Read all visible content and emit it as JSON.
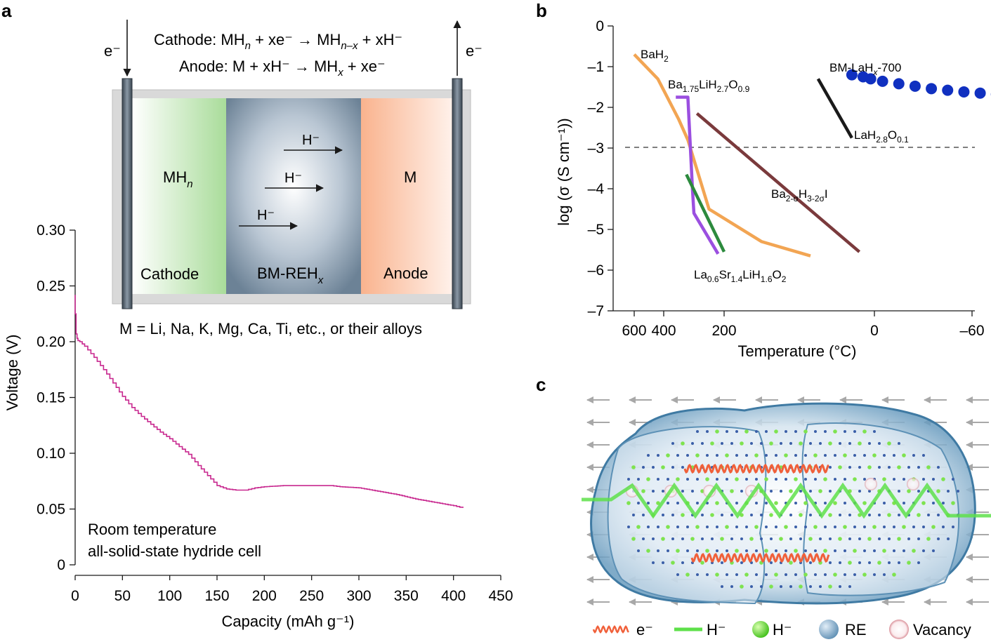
{
  "panel_labels": {
    "a": "a",
    "b": "b",
    "c": "c"
  },
  "cell_diagram": {
    "electron_in": "e⁻",
    "electron_out": "e⁻",
    "cathode_eq": {
      "pre": "Cathode: MH",
      "n": "n",
      "mid": " + xe⁻ → MH",
      "nx": "n–x",
      "post": " + xH⁻"
    },
    "anode_eq": {
      "pre": "Anode: M + xH⁻ → MH",
      "x": "x",
      "post": " + xe⁻"
    },
    "cathode_region": {
      "main": "MH",
      "sub": "n",
      "label": "Cathode"
    },
    "electrolyte_region": {
      "label_main": "BM-REH",
      "label_sub": "x",
      "ion_labels": [
        "H⁻",
        "H⁻",
        "H⁻"
      ]
    },
    "anode_region": {
      "main": "M",
      "label": "Anode"
    },
    "metals_note": "M = Li, Na, K, Mg, Ca, Ti, etc., or their alloys"
  },
  "chart_a": {
    "chart_data": {
      "type": "line",
      "xlabel": "Capacity (mAh g⁻¹)",
      "ylabel": "Voltage (V)",
      "xlim": [
        0,
        450
      ],
      "ylim": [
        0,
        0.3
      ],
      "xticks": [
        "0",
        "50",
        "100",
        "150",
        "200",
        "250",
        "300",
        "350",
        "400",
        "450"
      ],
      "yticks": [
        "0",
        "0.05",
        "0.10",
        "0.15",
        "0.20",
        "0.25",
        "0.30"
      ],
      "annotation": [
        "Room temperature",
        "all-solid-state hydride cell"
      ],
      "series": [
        {
          "color": "#c8288f",
          "x": [
            0,
            0,
            1,
            2,
            3,
            5,
            10,
            20,
            30,
            40,
            50,
            60,
            70,
            80,
            90,
            100,
            110,
            120,
            130,
            140,
            150,
            160,
            170,
            180,
            190,
            200,
            220,
            240,
            260,
            270,
            280,
            300,
            320,
            340,
            360,
            380,
            400,
            410
          ],
          "y": [
            0.242,
            0.225,
            0.207,
            0.203,
            0.201,
            0.2,
            0.196,
            0.186,
            0.175,
            0.163,
            0.151,
            0.141,
            0.133,
            0.126,
            0.119,
            0.113,
            0.106,
            0.099,
            0.089,
            0.08,
            0.071,
            0.068,
            0.067,
            0.067,
            0.069,
            0.07,
            0.071,
            0.071,
            0.071,
            0.071,
            0.07,
            0.069,
            0.066,
            0.063,
            0.059,
            0.056,
            0.053,
            0.051
          ]
        }
      ]
    }
  },
  "chart_b": {
    "chart_data": {
      "type": "line",
      "xlabel": "Temperature (°C)",
      "ylabel": "log (σ (S cm⁻¹))",
      "xticks": [
        "600",
        "400",
        "200",
        "0",
        "–60"
      ],
      "xtick_values": [
        600,
        400,
        200,
        0,
        -60
      ],
      "yticks": [
        "0",
        "–1",
        "–2",
        "–3",
        "–4",
        "–5",
        "–6",
        "–7"
      ],
      "ylim": [
        -7,
        0
      ],
      "reference_line": -3,
      "series": [
        {
          "name": "BaH2",
          "color": "#f2a553",
          "x": [
            600,
            440,
            350,
            320,
            250,
            150,
            85
          ],
          "y": [
            -0.7,
            -1.3,
            -2.3,
            -2.8,
            -4.5,
            -5.3,
            -5.65
          ]
        },
        {
          "name": "Ba1.75LiH2.7O0.9",
          "color": "#9b4fe0",
          "x": [
            360,
            320,
            305,
            300,
            220
          ],
          "y": [
            -1.75,
            -1.75,
            -4.0,
            -4.6,
            -5.6
          ]
        },
        {
          "name": "La0.6Sr1.4LiH1.6O2",
          "color": "#2c8a3d",
          "x": [
            325,
            200
          ],
          "y": [
            -3.65,
            -5.55
          ]
        },
        {
          "name": "Ba2-σH3-2σI",
          "color": "#7a3a3c",
          "x": [
            290,
            20
          ],
          "y": [
            -2.15,
            -5.55
          ]
        },
        {
          "name": "LaH2.8O0.1",
          "color": "#1a1a1a",
          "x": [
            75,
            30
          ],
          "y": [
            -1.3,
            -2.75
          ]
        },
        {
          "name": "BM-LaHx-700",
          "color": "#1030c0",
          "marker": "circle",
          "x": [
            30,
            15,
            5,
            -5,
            -15,
            -25,
            -35,
            -45,
            -55,
            -65,
            -75,
            -85,
            -95,
            -105,
            -115
          ],
          "y": [
            -1.2,
            -1.25,
            -1.3,
            -1.36,
            -1.42,
            -1.48,
            -1.54,
            -1.58,
            -1.62,
            -1.65,
            -1.68,
            -1.74,
            -1.8,
            -1.9,
            -1.97
          ]
        }
      ],
      "series_labels": {
        "bah2": {
          "main": "BaH",
          "s1": "2"
        },
        "ba175": {
          "main": "Ba",
          "s1": "1.75",
          "m2": "LiH",
          "s2": "2.7",
          "m3": "O",
          "s3": "0.9"
        },
        "bmlah": {
          "main": "BM-LaH",
          "s1": "x",
          "post": "-700"
        },
        "lah28": {
          "main": "LaH",
          "s1": "2.8",
          "m2": "O",
          "s2": "0.1"
        },
        "ba2s": {
          "main": "Ba",
          "s1": "2-σ",
          "m2": "H",
          "s2": "3-2σ",
          "m3": "I"
        },
        "la06": {
          "main": "La",
          "s1": "0.6",
          "m2": "Sr",
          "s2": "1.4",
          "m3": "LiH",
          "s3": "1.6",
          "m4": "O",
          "s4": "2"
        }
      }
    }
  },
  "panel_c": {
    "legend": [
      {
        "symbol": "wavy-electron",
        "label": "e⁻"
      },
      {
        "symbol": "zigzag-hydride",
        "label": "H⁻"
      },
      {
        "symbol": "green-sphere",
        "label": "H⁻"
      },
      {
        "symbol": "blue-sphere",
        "label": "RE"
      },
      {
        "symbol": "hollow-circle",
        "label": "Vacancy"
      }
    ],
    "colors": {
      "shell": "#4a86ad",
      "hydride": "#5ee04a",
      "electron": "#f0603a",
      "arrow": "#a8a8a8"
    }
  }
}
